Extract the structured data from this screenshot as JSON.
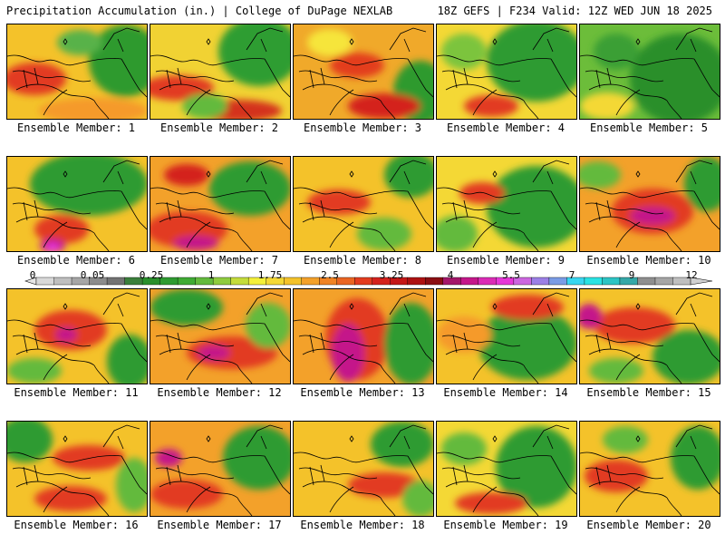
{
  "header": {
    "left": "Precipitation Accumulation (in.) | College of DuPage NEXLAB",
    "right": "18Z GEFS | F234 Valid: 12Z WED JUN 18 2025"
  },
  "members": [
    {
      "label": "Ensemble Member: 1",
      "base": "#f4c22a",
      "blobs": [
        [
          "#2e9a2e",
          130,
          40,
          40,
          40
        ],
        [
          "#e23b23",
          30,
          60,
          35,
          18
        ],
        [
          "#f59a2a",
          95,
          95,
          60,
          14
        ],
        [
          "#58b24a",
          80,
          20,
          25,
          14
        ]
      ]
    },
    {
      "label": "Ensemble Member: 2",
      "base": "#f1d233",
      "blobs": [
        [
          "#2f9d31",
          120,
          30,
          45,
          38
        ],
        [
          "#e23b23",
          30,
          70,
          40,
          14
        ],
        [
          "#d4311d",
          95,
          95,
          50,
          12
        ],
        [
          "#63ba3d",
          60,
          90,
          25,
          14
        ]
      ]
    },
    {
      "label": "Ensemble Member: 3",
      "base": "#f0a92a",
      "blobs": [
        [
          "#2e9a2e",
          140,
          75,
          30,
          35
        ],
        [
          "#d4221d",
          100,
          90,
          40,
          14
        ],
        [
          "#e33c1f",
          70,
          45,
          30,
          14
        ],
        [
          "#f6e53a",
          40,
          20,
          25,
          15
        ]
      ]
    },
    {
      "label": "Ensemble Member: 4",
      "base": "#f4d835",
      "blobs": [
        [
          "#2f9b31",
          110,
          40,
          55,
          45
        ],
        [
          "#e23b23",
          60,
          90,
          30,
          12
        ],
        [
          "#7cc43d",
          30,
          30,
          25,
          20
        ]
      ]
    },
    {
      "label": "Ensemble Member: 5",
      "base": "#6cbd3a",
      "blobs": [
        [
          "#2a8f2c",
          110,
          60,
          55,
          50
        ],
        [
          "#f4d835",
          30,
          90,
          30,
          15
        ],
        [
          "#3a9f36",
          40,
          30,
          25,
          20
        ]
      ]
    },
    {
      "label": "Ensemble Member: 6",
      "base": "#f4c22a",
      "blobs": [
        [
          "#2f9b31",
          90,
          30,
          65,
          35
        ],
        [
          "#e23b23",
          60,
          80,
          30,
          16
        ],
        [
          "#c4178a",
          50,
          98,
          14,
          8
        ],
        [
          "#e637d8",
          50,
          100,
          8,
          5
        ]
      ]
    },
    {
      "label": "Ensemble Member: 7",
      "base": "#f3a12a",
      "blobs": [
        [
          "#e23b23",
          40,
          80,
          45,
          20
        ],
        [
          "#c4178a",
          50,
          95,
          25,
          8
        ],
        [
          "#2f9b31",
          110,
          35,
          45,
          30
        ],
        [
          "#d4221d",
          40,
          20,
          25,
          12
        ]
      ]
    },
    {
      "label": "Ensemble Member: 8",
      "base": "#f4c22a",
      "blobs": [
        [
          "#2f9b31",
          130,
          20,
          30,
          25
        ],
        [
          "#e23b23",
          50,
          50,
          35,
          14
        ],
        [
          "#63ba3d",
          100,
          85,
          30,
          18
        ]
      ]
    },
    {
      "label": "Ensemble Member: 9",
      "base": "#f4d835",
      "blobs": [
        [
          "#2f9b31",
          110,
          55,
          55,
          45
        ],
        [
          "#e23b23",
          50,
          40,
          25,
          12
        ],
        [
          "#63ba3d",
          20,
          85,
          25,
          20
        ]
      ]
    },
    {
      "label": "Ensemble Member: 10",
      "base": "#f3a12a",
      "blobs": [
        [
          "#e23b23",
          80,
          60,
          45,
          25
        ],
        [
          "#c4178a",
          80,
          65,
          25,
          10
        ],
        [
          "#2f9b31",
          140,
          30,
          25,
          30
        ],
        [
          "#63ba3d",
          20,
          20,
          25,
          15
        ]
      ]
    },
    {
      "label": "Ensemble Member: 11",
      "base": "#f4c22a",
      "blobs": [
        [
          "#e23b23",
          70,
          45,
          40,
          22
        ],
        [
          "#c4178a",
          65,
          50,
          12,
          8
        ],
        [
          "#2f9b31",
          135,
          80,
          25,
          30
        ],
        [
          "#63ba3d",
          30,
          90,
          30,
          14
        ]
      ]
    },
    {
      "label": "Ensemble Member: 12",
      "base": "#f3a12a",
      "blobs": [
        [
          "#2f9b31",
          40,
          20,
          40,
          20
        ],
        [
          "#e23b23",
          90,
          70,
          50,
          18
        ],
        [
          "#c4178a",
          70,
          70,
          18,
          8
        ],
        [
          "#63ba3d",
          130,
          40,
          25,
          25
        ]
      ]
    },
    {
      "label": "Ensemble Member: 13",
      "base": "#f3a12a",
      "blobs": [
        [
          "#e23b23",
          70,
          55,
          35,
          45
        ],
        [
          "#c4178a",
          60,
          70,
          18,
          32
        ],
        [
          "#2f9b31",
          130,
          60,
          30,
          45
        ]
      ]
    },
    {
      "label": "Ensemble Member: 14",
      "base": "#f4c22a",
      "blobs": [
        [
          "#2f9b31",
          100,
          60,
          55,
          40
        ],
        [
          "#e23b23",
          100,
          20,
          40,
          14
        ],
        [
          "#f59a2a",
          30,
          50,
          30,
          20
        ]
      ]
    },
    {
      "label": "Ensemble Member: 15",
      "base": "#f4c22a",
      "blobs": [
        [
          "#e23b23",
          60,
          40,
          45,
          20
        ],
        [
          "#c4178a",
          10,
          30,
          14,
          14
        ],
        [
          "#2f9b31",
          120,
          75,
          40,
          30
        ],
        [
          "#63ba3d",
          40,
          90,
          30,
          14
        ]
      ]
    },
    {
      "label": "Ensemble Member: 16",
      "base": "#f4c22a",
      "blobs": [
        [
          "#2f9b31",
          20,
          20,
          30,
          25
        ],
        [
          "#e23b23",
          90,
          40,
          40,
          14
        ],
        [
          "#e23b23",
          70,
          85,
          40,
          14
        ],
        [
          "#63ba3d",
          140,
          70,
          20,
          30
        ]
      ]
    },
    {
      "label": "Ensemble Member: 17",
      "base": "#f3a12a",
      "blobs": [
        [
          "#c4178a",
          20,
          40,
          15,
          10
        ],
        [
          "#e23b23",
          40,
          80,
          40,
          16
        ],
        [
          "#2f9b31",
          120,
          40,
          40,
          35
        ]
      ]
    },
    {
      "label": "Ensemble Member: 18",
      "base": "#f4c22a",
      "blobs": [
        [
          "#2f9b31",
          120,
          25,
          35,
          25
        ],
        [
          "#e23b23",
          100,
          70,
          40,
          14
        ],
        [
          "#63ba3d",
          140,
          85,
          20,
          20
        ]
      ]
    },
    {
      "label": "Ensemble Member: 19",
      "base": "#f4d835",
      "blobs": [
        [
          "#2f9b31",
          110,
          50,
          45,
          45
        ],
        [
          "#e23b23",
          60,
          90,
          40,
          12
        ],
        [
          "#63ba3d",
          30,
          30,
          25,
          18
        ]
      ]
    },
    {
      "label": "Ensemble Member: 20",
      "base": "#f4c22a",
      "blobs": [
        [
          "#2f9b31",
          130,
          40,
          30,
          35
        ],
        [
          "#e23b23",
          40,
          60,
          35,
          18
        ],
        [
          "#63ba3d",
          50,
          20,
          25,
          15
        ]
      ]
    }
  ],
  "colorbar": {
    "ticks": [
      "0",
      "0.05",
      "0.25",
      "1",
      "1.75",
      "2.5",
      "3.25",
      "4",
      "5.5",
      "7",
      "9",
      "12"
    ],
    "colors": [
      "#d9d9d9",
      "#bfbfbf",
      "#a6a6a6",
      "#8c8c8c",
      "#737373",
      "#3b7f3b",
      "#2a8f2c",
      "#2f9b31",
      "#3fab34",
      "#63ba3d",
      "#8fcc3e",
      "#c4dc3a",
      "#f4f03a",
      "#f4d835",
      "#f4c22a",
      "#f3a12a",
      "#f08324",
      "#ea6522",
      "#e33c1f",
      "#d4221d",
      "#c41717",
      "#ad1111",
      "#8b0e12",
      "#a4176a",
      "#c4178a",
      "#db2bb6",
      "#e637d8",
      "#cc66e0",
      "#9b7fe6",
      "#7a9ce6",
      "#38d6f0",
      "#29e3e3",
      "#2cc4c4",
      "#35a8a8",
      "#8f8f8f",
      "#a6a6a6",
      "#bfbfbf"
    ]
  }
}
